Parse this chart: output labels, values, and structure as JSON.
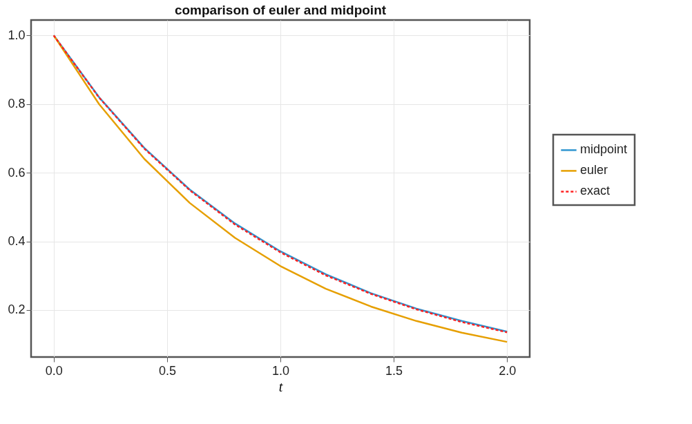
{
  "chart_data": {
    "type": "line",
    "title": "comparison of euler and midpoint",
    "xlabel": "t",
    "x": [
      0,
      0.2,
      0.4,
      0.6,
      0.8,
      1.0,
      1.2,
      1.4,
      1.6,
      1.8,
      2.0
    ],
    "series": [
      {
        "name": "midpoint",
        "color": "#2f95d0",
        "line_style": "solid",
        "values": [
          1,
          0.82,
          0.672,
          0.551,
          0.452,
          0.371,
          0.304,
          0.249,
          0.204,
          0.168,
          0.137
        ]
      },
      {
        "name": "euler",
        "color": "#e69f00",
        "line_style": "solid",
        "values": [
          1,
          0.8,
          0.64,
          0.512,
          0.41,
          0.328,
          0.262,
          0.21,
          0.168,
          0.134,
          0.107
        ]
      },
      {
        "name": "exact",
        "color": "#ff2020",
        "line_style": "dashed",
        "values": [
          1,
          0.819,
          0.67,
          0.549,
          0.449,
          0.368,
          0.301,
          0.247,
          0.202,
          0.165,
          0.135
        ]
      }
    ],
    "xlim": [
      -0.1,
      2.1
    ],
    "xticks": [
      {
        "value": 0,
        "label": "0.0"
      },
      0.5,
      {
        "value": 1,
        "label": "1.0"
      },
      1.5,
      {
        "value": 2,
        "label": "2.0"
      }
    ],
    "ylim": [
      0.063,
      1.045
    ],
    "yticks": [
      0.2,
      0.4,
      0.6,
      0.8,
      {
        "value": 1,
        "label": "1.0"
      }
    ],
    "grid": true,
    "legend": "right",
    "marker": "none"
  }
}
